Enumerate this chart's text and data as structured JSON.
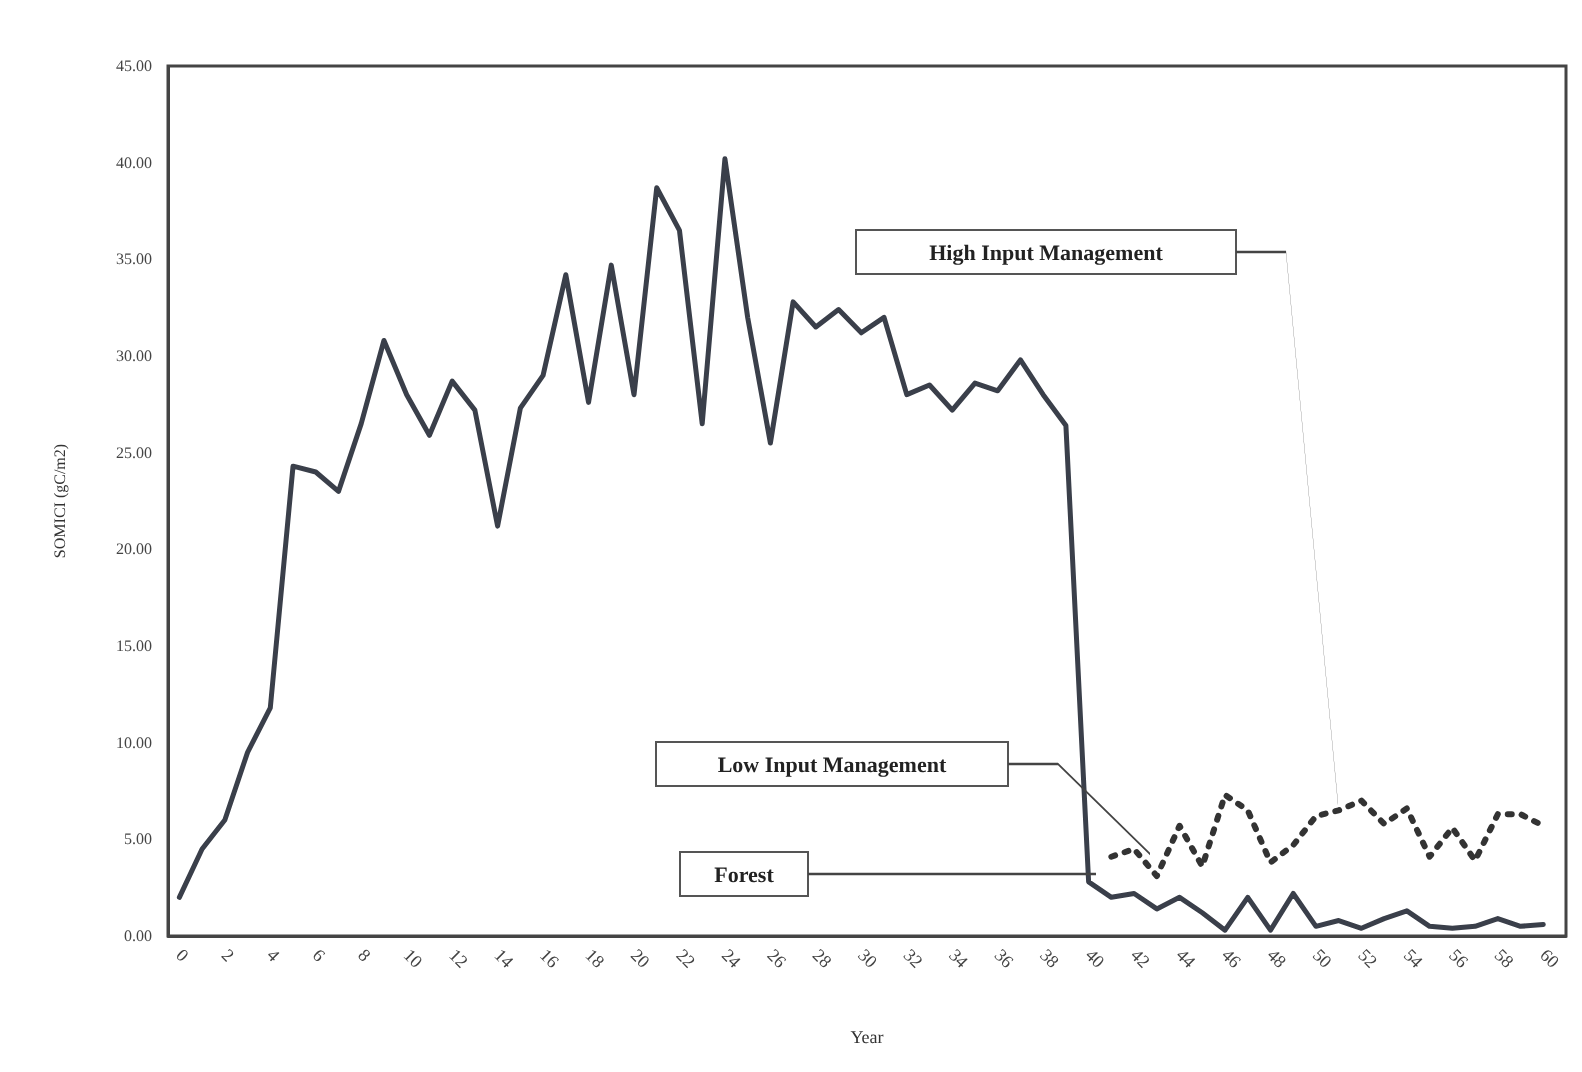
{
  "chart_data": {
    "type": "line",
    "xlabel": "Year",
    "ylabel": "SOMICI (gC/m2)",
    "xlim": [
      -0.5,
      61
    ],
    "xticks": [
      0,
      2,
      4,
      6,
      8,
      10,
      12,
      14,
      16,
      18,
      20,
      22,
      24,
      26,
      28,
      30,
      32,
      34,
      36,
      38,
      40,
      42,
      44,
      46,
      48,
      50,
      52,
      54,
      56,
      58,
      60
    ],
    "ylim": [
      0,
      45
    ],
    "yticks": [
      {
        "value": 0,
        "label": "0.00"
      },
      {
        "value": 5,
        "label": "5.00"
      },
      {
        "value": 10,
        "label": "10.00"
      },
      {
        "value": 15,
        "label": "15.00"
      },
      {
        "value": 20,
        "label": "20.00"
      },
      {
        "value": 25,
        "label": "25.00"
      },
      {
        "value": 30,
        "label": "30.00"
      },
      {
        "value": 35,
        "label": "35.00"
      },
      {
        "value": 40,
        "label": "40.00"
      },
      {
        "value": 45,
        "label": "45.00"
      }
    ],
    "marker": "none",
    "series": [
      {
        "color": "#3a3f4a",
        "line_style": "solid",
        "x": [
          0,
          1,
          2,
          3,
          4,
          5,
          6,
          7,
          8,
          9,
          10,
          11,
          12,
          13,
          14,
          15,
          16,
          17,
          18,
          19,
          20,
          21,
          22,
          23,
          24,
          25,
          26,
          27,
          28,
          29,
          30,
          31,
          32,
          33,
          34,
          35,
          36,
          37,
          38,
          39,
          40,
          41,
          42,
          43,
          44,
          45,
          46,
          47,
          48,
          49,
          50,
          51,
          52,
          53,
          54,
          55,
          56,
          57,
          58,
          59,
          60
        ],
        "values": [
          2,
          4.5,
          6,
          9.5,
          11.8,
          24.3,
          24,
          23,
          26.5,
          30.8,
          28,
          25.9,
          28.7,
          27.2,
          21.2,
          27.3,
          29,
          34.2,
          27.6,
          34.7,
          28,
          38.7,
          36.5,
          26.5,
          40.2,
          32,
          25.5,
          32.8,
          31.5,
          32.4,
          31.2,
          32,
          28,
          28.5,
          27.2,
          28.6,
          28.2,
          29.8,
          28,
          26.4,
          2.8,
          2,
          2.2,
          1.4,
          2,
          1.2,
          0.3,
          2,
          0.3,
          2.2,
          0.5,
          0.8,
          0.4,
          0.9,
          1.3,
          0.5,
          0.4,
          0.5,
          0.9,
          0.5,
          0.6
        ]
      },
      {
        "color": "#333333",
        "line_style": "dotted",
        "x": [
          41,
          42,
          43,
          44,
          45,
          46,
          47,
          48,
          49,
          50,
          51,
          52,
          53,
          54,
          55,
          56,
          57,
          58,
          59,
          60
        ],
        "values": [
          4.1,
          4.5,
          3.1,
          5.7,
          3.6,
          7.3,
          6.5,
          3.8,
          4.7,
          6.2,
          6.5,
          7,
          5.8,
          6.6,
          4.1,
          5.6,
          3.9,
          6.3,
          6.3,
          5.7
        ]
      }
    ],
    "annotations": [
      "High Input Management",
      "Low Input Management",
      "Forest"
    ]
  }
}
